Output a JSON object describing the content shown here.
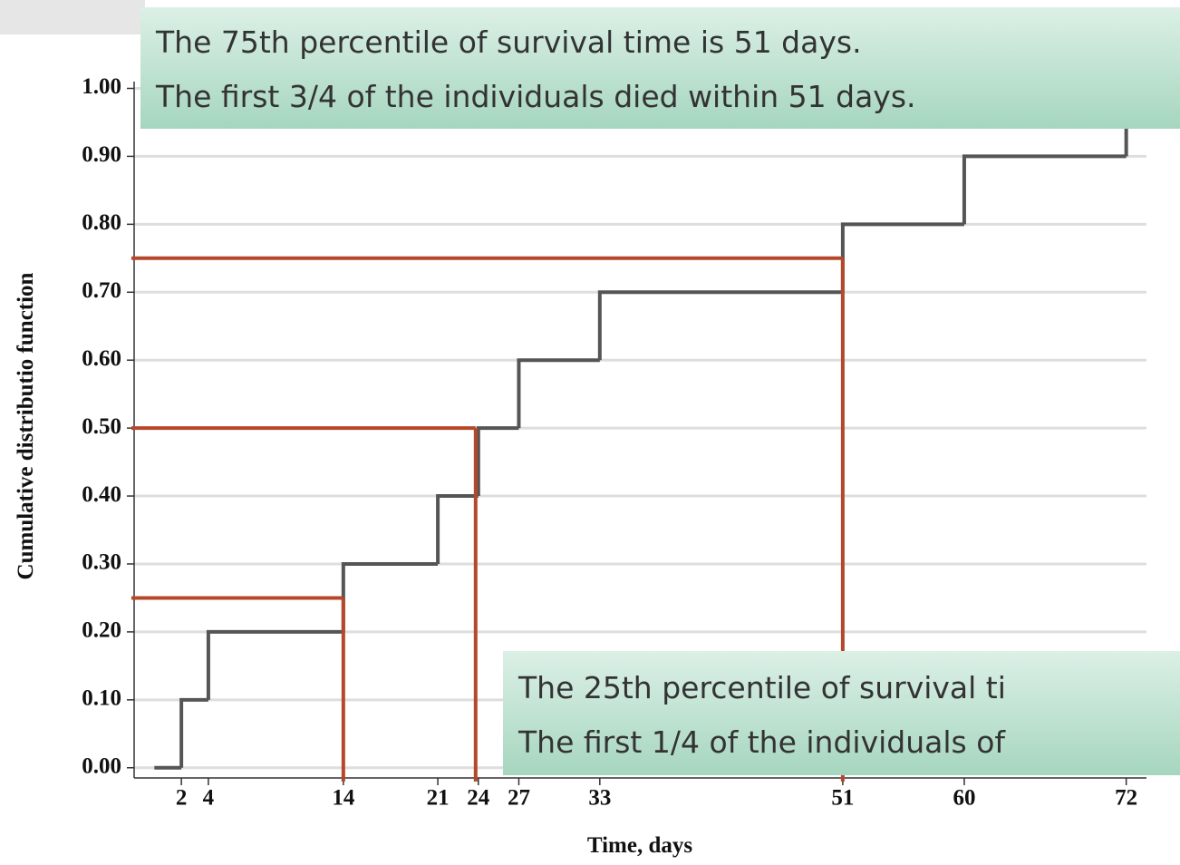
{
  "chart_data": {
    "type": "step",
    "x_label": "Time, days",
    "y_label": "Cumulative distributio function",
    "x": [
      0,
      2,
      4,
      14,
      21,
      24,
      27,
      33,
      51,
      60,
      72
    ],
    "values": [
      0,
      0.1,
      0.2,
      0.3,
      0.4,
      0.5,
      0.6,
      0.7,
      0.8,
      0.9,
      1.0
    ],
    "color": "#555555",
    "xlim": [
      -1.5,
      73.5
    ],
    "ylim": [
      -0.015,
      1.01
    ],
    "xticks": [
      2,
      4,
      14,
      21,
      24,
      27,
      33,
      51,
      60,
      72
    ],
    "yticks": [
      {
        "value": 0,
        "label": "0.00"
      },
      {
        "value": 0.1,
        "label": "0.10"
      },
      {
        "value": 0.2,
        "label": "0.20"
      },
      {
        "value": 0.3,
        "label": "0.30"
      },
      {
        "value": 0.4,
        "label": "0.40"
      },
      {
        "value": 0.5,
        "label": "0.50"
      },
      {
        "value": 0.6,
        "label": "0.60"
      },
      {
        "value": 0.7,
        "label": "0.70"
      },
      {
        "value": 0.8,
        "label": "0.80"
      },
      {
        "value": 0.9,
        "label": "0.90"
      },
      {
        "value": 1.0,
        "label": "1.00"
      }
    ],
    "grid": true,
    "reference_lines": {
      "color": "#b5482a",
      "points": [
        {
          "y": 0.25,
          "x": 14
        },
        {
          "y": 0.5,
          "x": 23.8
        },
        {
          "y": 0.75,
          "x": 51
        }
      ]
    },
    "callouts": [
      {
        "lines": [
          "The 75th percentile of survival time is 51 days.",
          "The first 3/4 of the individuals died within 51 days."
        ]
      },
      {
        "lines": [
          "The 25th percentile of survival ti",
          "The first 1/4 of the individuals of"
        ]
      }
    ]
  }
}
